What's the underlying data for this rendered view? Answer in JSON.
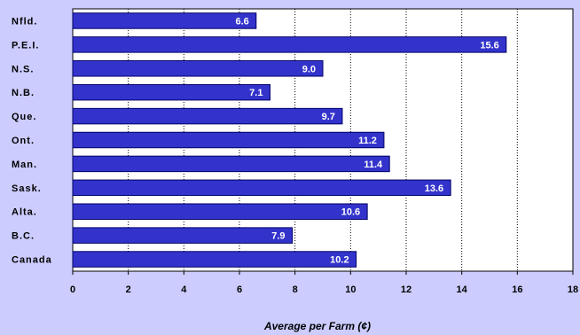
{
  "colors": {
    "background": "#ccccff",
    "plot_area": "#ffffff",
    "bar_fill": "#3333cc",
    "bar_stroke": "#000066",
    "bar_label": "#ffffff",
    "grid": "#000000"
  },
  "chart_data": {
    "type": "bar",
    "orientation": "horizontal",
    "categories": [
      "Nfld.",
      "P.E.I.",
      "N.S.",
      "N.B.",
      "Que.",
      "Ont.",
      "Man.",
      "Sask.",
      "Alta.",
      "B.C.",
      "Canada"
    ],
    "values": [
      6.6,
      15.6,
      9.0,
      7.1,
      9.7,
      11.2,
      11.4,
      13.6,
      10.6,
      7.9,
      10.2
    ],
    "value_labels": [
      "6.6",
      "15.6",
      "9.0",
      "7.1",
      "9.7",
      "11.2",
      "11.4",
      "13.6",
      "10.6",
      "7.9",
      "10.2"
    ],
    "title": "",
    "xlabel": "Average per Farm (¢)",
    "ylabel": "",
    "xlim": [
      0,
      18
    ],
    "xticks": [
      0,
      2,
      4,
      6,
      8,
      10,
      12,
      14,
      16,
      18
    ],
    "grid": "vertical dotted",
    "legend": "none"
  }
}
